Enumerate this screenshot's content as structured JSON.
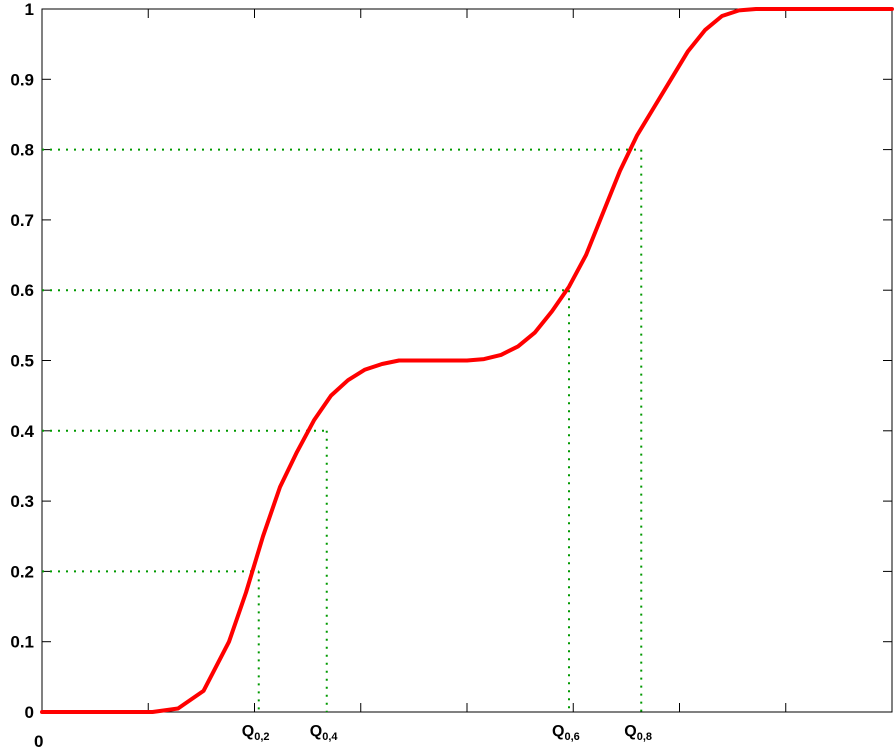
{
  "chart_data": {
    "type": "line",
    "title": "",
    "xlabel": "",
    "ylabel": "",
    "xlim": [
      0,
      1
    ],
    "ylim": [
      0,
      1
    ],
    "grid": false,
    "y_ticks": [
      "0",
      "0.1",
      "0.2",
      "0.3",
      "0.4",
      "0.5",
      "0.6",
      "0.7",
      "0.8",
      "0.9",
      "1"
    ],
    "x_origin_label": "0",
    "series": [
      {
        "color": "#ff0000",
        "x": [
          0,
          0.13,
          0.16,
          0.19,
          0.22,
          0.24,
          0.26,
          0.28,
          0.3,
          0.32,
          0.34,
          0.36,
          0.38,
          0.4,
          0.42,
          0.44,
          0.46,
          0.48,
          0.5,
          0.52,
          0.54,
          0.56,
          0.58,
          0.6,
          0.62,
          0.64,
          0.66,
          0.68,
          0.7,
          0.72,
          0.74,
          0.76,
          0.78,
          0.8,
          0.82,
          0.84,
          0.86,
          0.88,
          1
        ],
        "y": [
          0,
          0,
          0.005,
          0.03,
          0.1,
          0.17,
          0.25,
          0.32,
          0.37,
          0.415,
          0.45,
          0.472,
          0.487,
          0.495,
          0.5,
          0.5,
          0.5,
          0.5,
          0.5,
          0.502,
          0.508,
          0.52,
          0.54,
          0.57,
          0.605,
          0.65,
          0.71,
          0.77,
          0.82,
          0.86,
          0.9,
          0.94,
          0.97,
          0.99,
          0.998,
          1,
          1,
          1,
          1
        ]
      }
    ],
    "quantiles": [
      {
        "label": "Q",
        "sub": "0,2",
        "p": 0.2,
        "x": 0.255,
        "color": "#009900"
      },
      {
        "label": "Q",
        "sub": "0,4",
        "p": 0.4,
        "x": 0.335,
        "color": "#009900"
      },
      {
        "label": "Q",
        "sub": "0,6",
        "p": 0.6,
        "x": 0.62,
        "color": "#009900"
      },
      {
        "label": "Q",
        "sub": "0,8",
        "p": 0.8,
        "x": 0.705,
        "color": "#009900"
      }
    ],
    "x_ticks_unlabeled": [
      0.125,
      0.25,
      0.375,
      0.5,
      0.625,
      0.75,
      0.875
    ]
  }
}
